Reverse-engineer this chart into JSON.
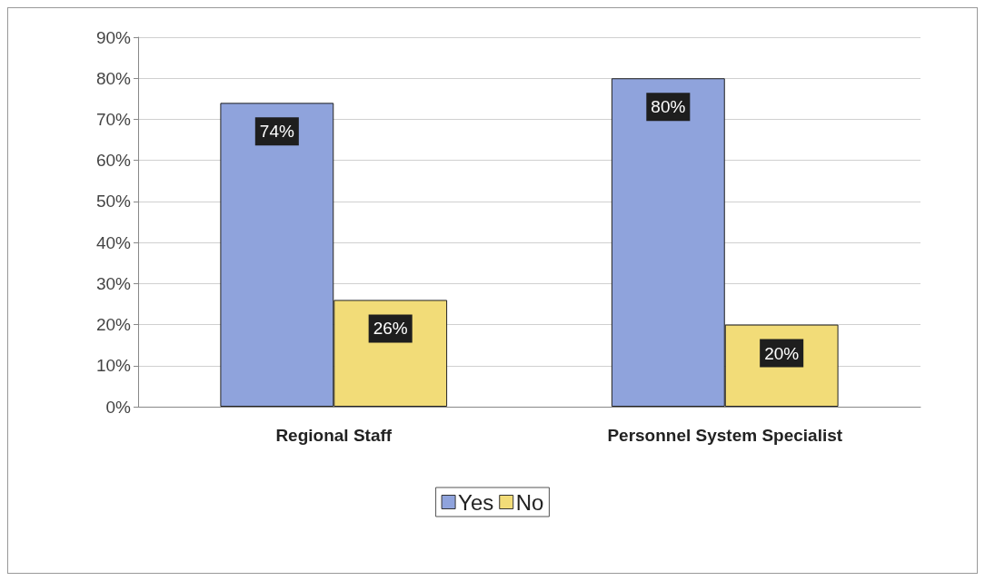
{
  "chart_data": {
    "type": "bar",
    "categories": [
      "Regional Staff",
      "Personnel System Specialist"
    ],
    "series": [
      {
        "name": "Yes",
        "color": "#8fa3dc",
        "values": [
          74,
          80
        ],
        "value_labels": [
          "74%",
          "80%"
        ]
      },
      {
        "name": "No",
        "color": "#f2dc78",
        "values": [
          26,
          20
        ],
        "value_labels": [
          "26%",
          "20%"
        ]
      }
    ],
    "ylim": [
      0,
      90
    ],
    "yticks": [
      {
        "value": 0,
        "label": "0%"
      },
      {
        "value": 10,
        "label": "10%"
      },
      {
        "value": 20,
        "label": "20%"
      },
      {
        "value": 30,
        "label": "30%"
      },
      {
        "value": 40,
        "label": "40%"
      },
      {
        "value": 50,
        "label": "50%"
      },
      {
        "value": 60,
        "label": "60%"
      },
      {
        "value": 70,
        "label": "70%"
      },
      {
        "value": 80,
        "label": "80%"
      },
      {
        "value": 90,
        "label": "90%"
      }
    ],
    "grid": "y",
    "legend": "bottom"
  }
}
